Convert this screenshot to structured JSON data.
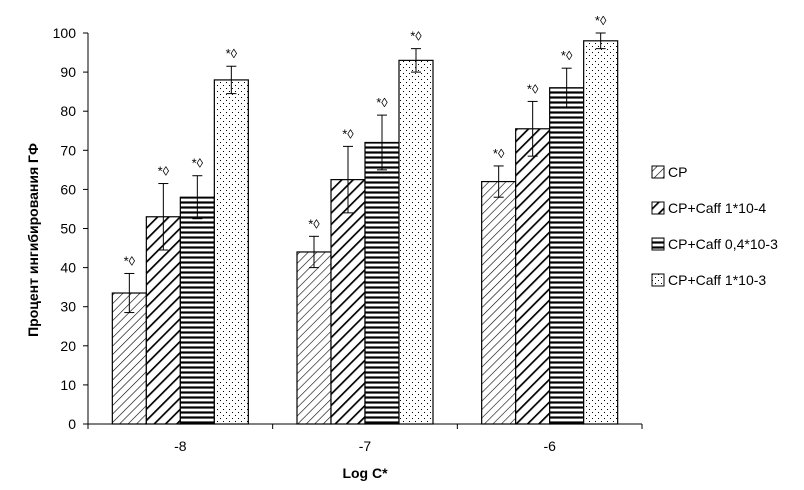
{
  "chart_data": {
    "type": "bar",
    "categories": [
      "-8",
      "-7",
      "-6"
    ],
    "series": [
      {
        "name": "CP",
        "values": [
          33.5,
          44,
          62
        ],
        "errors": [
          5,
          4,
          4
        ],
        "pattern": "hatch-light"
      },
      {
        "name": "CP+Caff 1*10-4",
        "values": [
          53,
          62.5,
          75.5
        ],
        "errors": [
          8.5,
          8.5,
          7
        ],
        "pattern": "hatch-bold"
      },
      {
        "name": "CP+Caff 0,4*10-3",
        "values": [
          58,
          72,
          86
        ],
        "errors": [
          5.5,
          7,
          5
        ],
        "pattern": "horizontal"
      },
      {
        "name": "CP+Caff 1*10-3",
        "values": [
          88,
          93,
          98
        ],
        "errors": [
          3.5,
          3,
          2
        ],
        "pattern": "dots"
      }
    ],
    "annotation": "*◊",
    "xlabel": "Log C*",
    "ylabel": "Процент ингибирования ГФ",
    "ylim": [
      0,
      100
    ],
    "yticks": [
      0,
      10,
      20,
      30,
      40,
      50,
      60,
      70,
      80,
      90,
      100
    ],
    "grid": false,
    "legend": "right"
  }
}
